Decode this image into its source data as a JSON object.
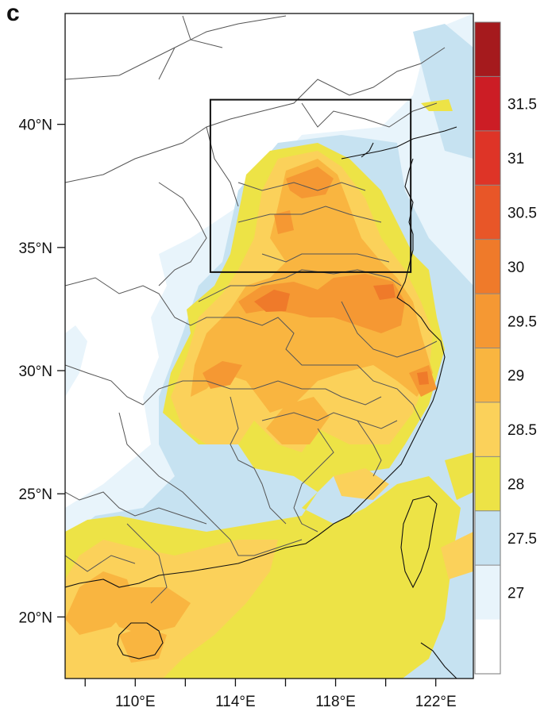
{
  "panel_label": "c",
  "map": {
    "lon_range": [
      107.2,
      123.5
    ],
    "lat_range": [
      17.5,
      44.5
    ],
    "lon_ticks": [
      {
        "value": 108,
        "label": ""
      },
      {
        "value": 110,
        "label": "110°E"
      },
      {
        "value": 112,
        "label": ""
      },
      {
        "value": 114,
        "label": "114°E"
      },
      {
        "value": 116,
        "label": ""
      },
      {
        "value": 118,
        "label": "118°E"
      },
      {
        "value": 120,
        "label": ""
      },
      {
        "value": 122,
        "label": "122°E"
      }
    ],
    "lat_ticks": [
      {
        "value": 20,
        "label": "20°N"
      },
      {
        "value": 25,
        "label": "25°N"
      },
      {
        "value": 30,
        "label": "30°N"
      },
      {
        "value": 35,
        "label": "35°N"
      },
      {
        "value": 40,
        "label": "40°N"
      }
    ],
    "region_box": {
      "lon": [
        113,
        121
      ],
      "lat": [
        34,
        41
      ]
    }
  },
  "colorbar": {
    "colors": [
      "#ffffff",
      "#e8f4fb",
      "#c6e2f1",
      "#ede346",
      "#fbd15a",
      "#f9b540",
      "#f59833",
      "#ef7a2a",
      "#e85628",
      "#de3427",
      "#cc1d25",
      "#a51a1d"
    ],
    "levels": [
      "27",
      "27.5",
      "28",
      "28.5",
      "29",
      "29.5",
      "30",
      "30.5",
      "31",
      "31.5"
    ]
  }
}
